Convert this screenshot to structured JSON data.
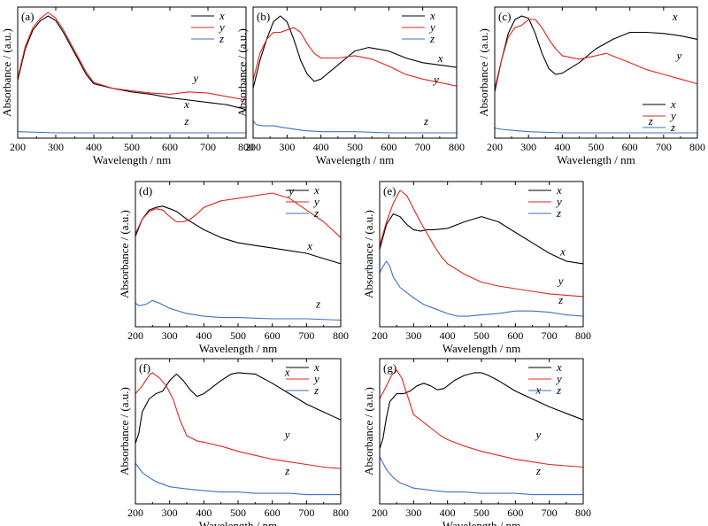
{
  "colors": {
    "x": "#000000",
    "y": "#e0241b",
    "z": "#3f6fc4"
  },
  "chart_data": [
    {
      "type": "line",
      "panel_label": "(a)",
      "xlabel": "Wavelength / nm",
      "ylabel": "Absorbance / (a.u.)",
      "xlim": [
        200,
        800
      ],
      "ylim": [
        0,
        1
      ],
      "x_ticks": [
        "200",
        "300",
        "400",
        "500",
        "600",
        "700",
        "800"
      ],
      "legend": [
        "x",
        "y",
        "z"
      ],
      "legend_position": "top-right",
      "series": [
        {
          "name": "x",
          "color": "#000000",
          "x": [
            200,
            220,
            240,
            260,
            280,
            300,
            320,
            350,
            380,
            400,
            450,
            500,
            550,
            600,
            650,
            700,
            750,
            800
          ],
          "y": [
            0.45,
            0.72,
            0.88,
            0.96,
            1.0,
            0.96,
            0.86,
            0.68,
            0.5,
            0.42,
            0.38,
            0.35,
            0.33,
            0.3,
            0.28,
            0.26,
            0.24,
            0.2
          ]
        },
        {
          "name": "y",
          "color": "#e0241b",
          "x": [
            200,
            220,
            240,
            260,
            280,
            300,
            320,
            350,
            380,
            400,
            450,
            500,
            550,
            600,
            650,
            700,
            750,
            800
          ],
          "y": [
            0.47,
            0.74,
            0.9,
            0.98,
            1.03,
            0.98,
            0.88,
            0.7,
            0.52,
            0.43,
            0.38,
            0.36,
            0.34,
            0.33,
            0.35,
            0.34,
            0.31,
            0.28
          ]
        },
        {
          "name": "z",
          "color": "#3f6fc4",
          "x": [
            200,
            300,
            400,
            500,
            600,
            700,
            800
          ],
          "y": [
            0.01,
            0.0,
            0.0,
            0.0,
            0.0,
            0.0,
            0.0
          ]
        }
      ],
      "annotations": [
        "y",
        "x",
        "z"
      ]
    },
    {
      "type": "line",
      "panel_label": "(b)",
      "xlabel": "Wavelength / nm",
      "ylabel": "Absorbance / (a.u.)",
      "xlim": [
        200,
        800
      ],
      "ylim": [
        0,
        1
      ],
      "x_ticks": [
        "200",
        "300",
        "400",
        "500",
        "600",
        "700",
        "800"
      ],
      "legend": [
        "x",
        "y",
        "z"
      ],
      "legend_position": "top-right",
      "series": [
        {
          "name": "x",
          "color": "#000000",
          "x": [
            200,
            220,
            240,
            260,
            280,
            300,
            320,
            340,
            360,
            380,
            400,
            450,
            500,
            540,
            600,
            650,
            700,
            750,
            800
          ],
          "y": [
            0.38,
            0.62,
            0.8,
            0.95,
            1.0,
            0.95,
            0.8,
            0.62,
            0.5,
            0.44,
            0.46,
            0.58,
            0.7,
            0.73,
            0.7,
            0.64,
            0.6,
            0.58,
            0.56
          ]
        },
        {
          "name": "y",
          "color": "#e0241b",
          "x": [
            200,
            220,
            240,
            260,
            280,
            300,
            320,
            340,
            360,
            380,
            400,
            450,
            500,
            550,
            600,
            650,
            700,
            750,
            800
          ],
          "y": [
            0.45,
            0.68,
            0.8,
            0.86,
            0.86,
            0.88,
            0.9,
            0.86,
            0.76,
            0.68,
            0.64,
            0.64,
            0.66,
            0.63,
            0.57,
            0.5,
            0.46,
            0.43,
            0.4
          ]
        },
        {
          "name": "z",
          "color": "#3f6fc4",
          "x": [
            200,
            210,
            230,
            260,
            300,
            350,
            400,
            500,
            600,
            800
          ],
          "y": [
            0.1,
            0.07,
            0.06,
            0.06,
            0.04,
            0.02,
            0.01,
            0.01,
            0.0,
            0.0
          ]
        }
      ],
      "annotations": [
        "x",
        "y",
        "z"
      ]
    },
    {
      "type": "line",
      "panel_label": "(c)",
      "xlabel": "Wavelength / nm",
      "ylabel": "Absorbance / (a.u.)",
      "xlim": [
        200,
        800
      ],
      "ylim": [
        0,
        1
      ],
      "x_ticks": [
        "200",
        "300",
        "400",
        "500",
        "600",
        "700",
        "800"
      ],
      "legend": [
        "x",
        "y",
        "z"
      ],
      "legend_position": "bottom-right",
      "series": [
        {
          "name": "x",
          "color": "#000000",
          "x": [
            200,
            220,
            240,
            260,
            280,
            300,
            320,
            340,
            360,
            380,
            400,
            450,
            500,
            550,
            600,
            650,
            700,
            750,
            800
          ],
          "y": [
            0.35,
            0.62,
            0.85,
            0.97,
            1.0,
            0.98,
            0.85,
            0.68,
            0.55,
            0.5,
            0.51,
            0.6,
            0.72,
            0.8,
            0.86,
            0.86,
            0.85,
            0.83,
            0.8
          ]
        },
        {
          "name": "y",
          "color": "#e0241b",
          "x": [
            200,
            220,
            240,
            260,
            280,
            300,
            320,
            340,
            360,
            380,
            400,
            450,
            500,
            530,
            600,
            650,
            700,
            750,
            800
          ],
          "y": [
            0.38,
            0.62,
            0.82,
            0.9,
            0.92,
            0.97,
            0.97,
            0.9,
            0.8,
            0.72,
            0.66,
            0.63,
            0.66,
            0.68,
            0.6,
            0.54,
            0.5,
            0.46,
            0.42
          ]
        },
        {
          "name": "z",
          "color": "#3f6fc4",
          "x": [
            200,
            220,
            260,
            300,
            400,
            500,
            600,
            800
          ],
          "y": [
            0.04,
            0.03,
            0.02,
            0.01,
            0.0,
            0.0,
            0.0,
            0.0
          ]
        }
      ],
      "annotations": [
        "x",
        "y",
        "z"
      ]
    },
    {
      "type": "line",
      "panel_label": "(d)",
      "xlabel": "Wavelength / nm",
      "ylabel": "Absorbance / (a.u.)",
      "xlim": [
        200,
        800
      ],
      "ylim": [
        0,
        1
      ],
      "x_ticks": [
        "200",
        "300",
        "400",
        "500",
        "600",
        "700",
        "800"
      ],
      "legend": [
        "x",
        "y",
        "z"
      ],
      "legend_position": "top-right",
      "series": [
        {
          "name": "x",
          "color": "#000000",
          "x": [
            200,
            220,
            240,
            260,
            280,
            300,
            320,
            350,
            400,
            450,
            500,
            550,
            600,
            650,
            700,
            750,
            800
          ],
          "y": [
            0.65,
            0.78,
            0.85,
            0.87,
            0.88,
            0.86,
            0.84,
            0.78,
            0.7,
            0.64,
            0.6,
            0.58,
            0.56,
            0.54,
            0.52,
            0.48,
            0.44
          ]
        },
        {
          "name": "y",
          "color": "#e0241b",
          "x": [
            200,
            220,
            240,
            260,
            280,
            300,
            320,
            340,
            360,
            380,
            400,
            450,
            500,
            550,
            600,
            650,
            700,
            750,
            800
          ],
          "y": [
            0.67,
            0.78,
            0.84,
            0.86,
            0.85,
            0.8,
            0.76,
            0.76,
            0.78,
            0.82,
            0.87,
            0.92,
            0.94,
            0.96,
            0.98,
            0.94,
            0.85,
            0.76,
            0.64
          ]
        },
        {
          "name": "z",
          "color": "#3f6fc4",
          "x": [
            200,
            210,
            230,
            250,
            270,
            300,
            350,
            400,
            450,
            500,
            600,
            700,
            800
          ],
          "y": [
            0.14,
            0.12,
            0.13,
            0.16,
            0.14,
            0.1,
            0.06,
            0.04,
            0.03,
            0.03,
            0.02,
            0.02,
            0.01
          ]
        }
      ],
      "annotations": [
        "y",
        "x",
        "z"
      ]
    },
    {
      "type": "line",
      "panel_label": "(e)",
      "xlabel": "Wavelength / nm",
      "ylabel": "Absorbance / (a.u.)",
      "xlim": [
        200,
        800
      ],
      "ylim": [
        0,
        1
      ],
      "x_ticks": [
        "200",
        "300",
        "400",
        "500",
        "600",
        "700",
        "800"
      ],
      "legend": [
        "x",
        "y",
        "z"
      ],
      "legend_position": "top-right",
      "series": [
        {
          "name": "x",
          "color": "#000000",
          "x": [
            200,
            220,
            240,
            260,
            280,
            300,
            320,
            340,
            360,
            400,
            450,
            500,
            550,
            600,
            650,
            700,
            750,
            800
          ],
          "y": [
            0.55,
            0.74,
            0.82,
            0.8,
            0.74,
            0.7,
            0.69,
            0.7,
            0.7,
            0.71,
            0.76,
            0.8,
            0.76,
            0.68,
            0.6,
            0.52,
            0.46,
            0.44
          ]
        },
        {
          "name": "y",
          "color": "#e0241b",
          "x": [
            200,
            220,
            240,
            260,
            280,
            300,
            320,
            340,
            360,
            380,
            400,
            450,
            500,
            550,
            600,
            650,
            700,
            750,
            800
          ],
          "y": [
            0.58,
            0.76,
            0.9,
            1.0,
            0.96,
            0.86,
            0.76,
            0.67,
            0.58,
            0.5,
            0.44,
            0.36,
            0.3,
            0.27,
            0.25,
            0.23,
            0.21,
            0.2,
            0.19
          ]
        },
        {
          "name": "z",
          "color": "#3f6fc4",
          "x": [
            200,
            210,
            220,
            230,
            240,
            260,
            280,
            300,
            330,
            360,
            400,
            430,
            460,
            500,
            550,
            600,
            650,
            700,
            750,
            800
          ],
          "y": [
            0.37,
            0.42,
            0.46,
            0.42,
            0.34,
            0.26,
            0.22,
            0.18,
            0.13,
            0.1,
            0.06,
            0.04,
            0.04,
            0.05,
            0.06,
            0.08,
            0.08,
            0.07,
            0.05,
            0.04
          ]
        }
      ],
      "annotations": [
        "x",
        "y",
        "z"
      ]
    },
    {
      "type": "line",
      "panel_label": "(f)",
      "xlabel": "Wavelength / nm",
      "ylabel": "Absorbance / (a.u.)",
      "xlim": [
        200,
        800
      ],
      "ylim": [
        0,
        1
      ],
      "x_ticks": [
        "200",
        "300",
        "400",
        "500",
        "600",
        "700",
        "800"
      ],
      "legend": [
        "x",
        "y",
        "z"
      ],
      "legend_position": "top-right",
      "series": [
        {
          "name": "x",
          "color": "#000000",
          "x": [
            200,
            210,
            220,
            240,
            260,
            280,
            300,
            320,
            340,
            360,
            380,
            400,
            420,
            450,
            480,
            500,
            550,
            600,
            650,
            700,
            750,
            800
          ],
          "y": [
            0.42,
            0.5,
            0.66,
            0.76,
            0.8,
            0.82,
            0.9,
            0.95,
            0.9,
            0.83,
            0.78,
            0.8,
            0.84,
            0.9,
            0.95,
            0.96,
            0.95,
            0.88,
            0.8,
            0.72,
            0.66,
            0.6
          ]
        },
        {
          "name": "y",
          "color": "#e0241b",
          "x": [
            200,
            220,
            240,
            250,
            270,
            290,
            310,
            330,
            350,
            380,
            400,
            450,
            500,
            550,
            600,
            650,
            700,
            750,
            800
          ],
          "y": [
            0.8,
            0.86,
            0.94,
            0.96,
            0.92,
            0.86,
            0.76,
            0.6,
            0.48,
            0.44,
            0.43,
            0.4,
            0.36,
            0.33,
            0.3,
            0.28,
            0.26,
            0.24,
            0.23
          ]
        },
        {
          "name": "z",
          "color": "#3f6fc4",
          "x": [
            200,
            220,
            240,
            260,
            280,
            300,
            330,
            360,
            400,
            450,
            500,
            550,
            600,
            650,
            700,
            750,
            800
          ],
          "y": [
            0.27,
            0.2,
            0.16,
            0.13,
            0.11,
            0.09,
            0.08,
            0.07,
            0.06,
            0.05,
            0.05,
            0.04,
            0.04,
            0.04,
            0.03,
            0.03,
            0.03
          ]
        }
      ],
      "annotations": [
        "x",
        "y",
        "z"
      ]
    },
    {
      "type": "line",
      "panel_label": "(g)",
      "xlabel": "Wavelength / nm",
      "ylabel": "Absorbance / (a.u.)",
      "xlim": [
        200,
        800
      ],
      "ylim": [
        0,
        1
      ],
      "x_ticks": [
        "200",
        "300",
        "400",
        "500",
        "600",
        "700",
        "800"
      ],
      "legend": [
        "x",
        "y",
        "z"
      ],
      "legend_position": "top-right",
      "series": [
        {
          "name": "x",
          "color": "#000000",
          "x": [
            200,
            210,
            220,
            230,
            250,
            270,
            290,
            310,
            330,
            350,
            370,
            390,
            400,
            420,
            450,
            480,
            500,
            520,
            550,
            600,
            650,
            700,
            750,
            800
          ],
          "y": [
            0.38,
            0.46,
            0.62,
            0.74,
            0.8,
            0.8,
            0.82,
            0.86,
            0.88,
            0.86,
            0.83,
            0.84,
            0.86,
            0.9,
            0.94,
            0.96,
            0.96,
            0.94,
            0.9,
            0.82,
            0.76,
            0.7,
            0.65,
            0.6
          ]
        },
        {
          "name": "y",
          "color": "#e0241b",
          "x": [
            200,
            220,
            235,
            250,
            265,
            280,
            300,
            320,
            340,
            360,
            380,
            400,
            450,
            500,
            550,
            600,
            650,
            700,
            750,
            800
          ],
          "y": [
            0.76,
            0.86,
            0.94,
            0.98,
            0.92,
            0.8,
            0.64,
            0.6,
            0.56,
            0.52,
            0.48,
            0.45,
            0.4,
            0.36,
            0.33,
            0.3,
            0.28,
            0.26,
            0.25,
            0.24
          ]
        },
        {
          "name": "z",
          "color": "#3f6fc4",
          "x": [
            200,
            220,
            240,
            260,
            280,
            300,
            330,
            360,
            400,
            450,
            500,
            550,
            600,
            650,
            700,
            750,
            800
          ],
          "y": [
            0.32,
            0.22,
            0.16,
            0.12,
            0.1,
            0.08,
            0.07,
            0.06,
            0.05,
            0.05,
            0.04,
            0.04,
            0.04,
            0.03,
            0.03,
            0.03,
            0.03
          ]
        }
      ],
      "annotations": [
        "x",
        "y",
        "z"
      ]
    }
  ]
}
